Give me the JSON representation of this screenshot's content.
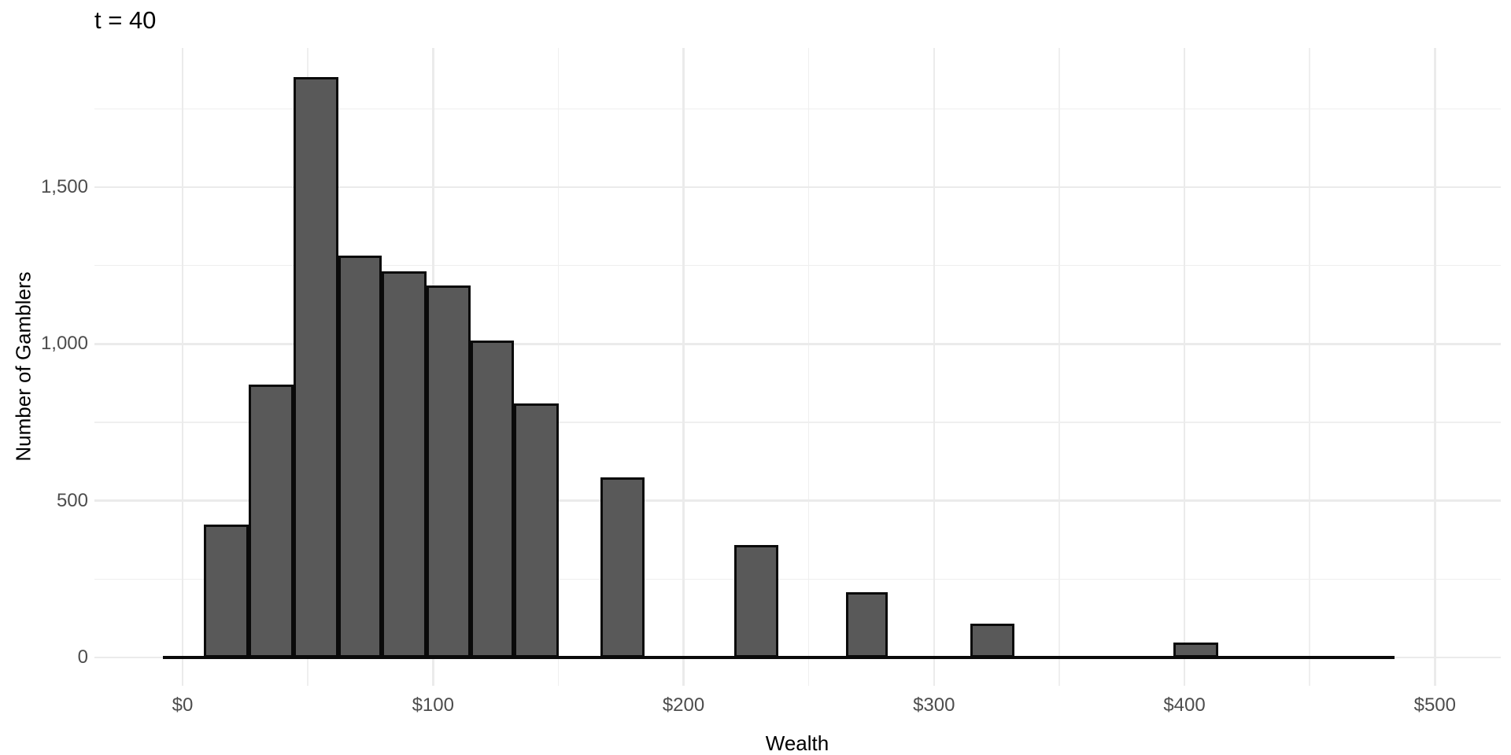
{
  "chart_data": {
    "type": "bar",
    "subtype": "histogram",
    "title": "t = 40",
    "xlabel": "Wealth",
    "ylabel": "Number of Gamblers",
    "xlim": [
      -35.2,
      526.3
    ],
    "ylim": [
      -90.3,
      1944.2
    ],
    "grid": "on",
    "legend": "none",
    "x_ticks": [
      {
        "value": 0,
        "label": "$0"
      },
      {
        "value": 100,
        "label": "$100"
      },
      {
        "value": 200,
        "label": "$200"
      },
      {
        "value": 300,
        "label": "$300"
      },
      {
        "value": 400,
        "label": "$400"
      },
      {
        "value": 500,
        "label": "$500"
      }
    ],
    "x_minor_gridlines": [
      50,
      150,
      250,
      350,
      450
    ],
    "y_ticks": [
      {
        "value": 0,
        "label": "0"
      },
      {
        "value": 500,
        "label": "500"
      },
      {
        "value": 1000,
        "label": "1,000"
      },
      {
        "value": 1500,
        "label": "1,500"
      }
    ],
    "y_minor_gridlines": [
      250,
      750,
      1250,
      1750
    ],
    "bins": [
      {
        "x0": 8.5,
        "x1": 26.4,
        "count": 424
      },
      {
        "x0": 26.4,
        "x1": 44.3,
        "count": 870
      },
      {
        "x0": 44.3,
        "x1": 62.2,
        "count": 1851
      },
      {
        "x0": 62.2,
        "x1": 79.5,
        "count": 1281
      },
      {
        "x0": 79.5,
        "x1": 97.4,
        "count": 1231
      },
      {
        "x0": 97.4,
        "x1": 115.0,
        "count": 1186
      },
      {
        "x0": 115.0,
        "x1": 132.3,
        "count": 1011
      },
      {
        "x0": 132.3,
        "x1": 150.2,
        "count": 810
      },
      {
        "x0": 166.8,
        "x1": 184.4,
        "count": 574
      },
      {
        "x0": 220.3,
        "x1": 237.9,
        "count": 359
      },
      {
        "x0": 264.9,
        "x1": 281.5,
        "count": 208
      },
      {
        "x0": 314.5,
        "x1": 332.1,
        "count": 108
      },
      {
        "x0": 395.6,
        "x1": 413.5,
        "count": 48
      }
    ],
    "zero_line": {
      "x0": -7.9,
      "x1": 483.9,
      "y": 0
    },
    "colors": {
      "bar_fill": "#595959",
      "bar_outline": "#0A0A0A",
      "grid_major": "#EBEBEB",
      "grid_minor": "#EFEFEF",
      "tick_label": "#4D4D4D",
      "title_text": "#000000",
      "background": "#FFFFFF"
    }
  }
}
